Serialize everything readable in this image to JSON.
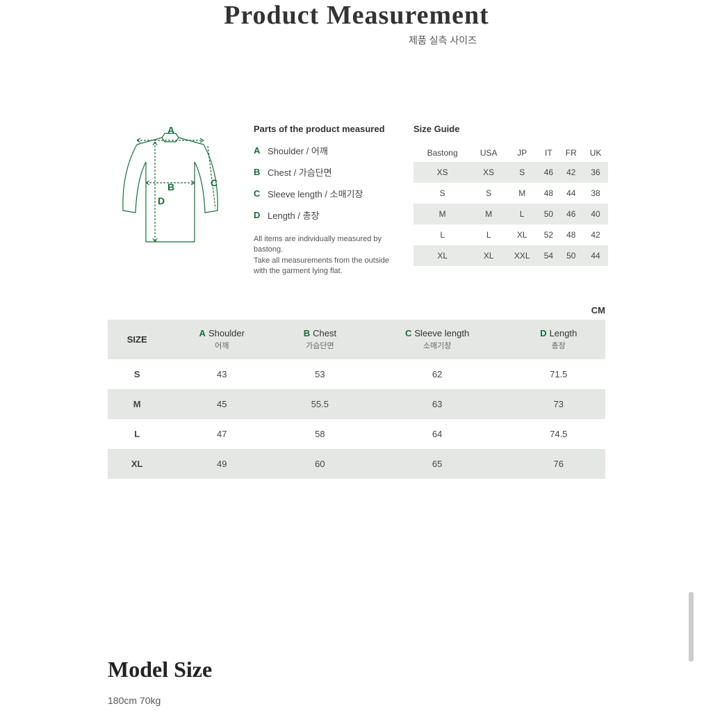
{
  "header": {
    "title": "Product Measurement",
    "subtitle": "제품 실측 사이즈"
  },
  "diagram": {
    "type": "garment-outline",
    "labels": {
      "A": "A",
      "B": "B",
      "C": "C",
      "D": "D"
    },
    "stroke_color": "#1a6b3a",
    "label_color": "#1a6b3a"
  },
  "parts": {
    "title": "Parts of the product measured",
    "items": [
      {
        "letter": "A",
        "label": "Shoulder / 어깨"
      },
      {
        "letter": "B",
        "label": "Chest / 가슴단면"
      },
      {
        "letter": "C",
        "label": "Sleeve length / 소매기장"
      },
      {
        "letter": "D",
        "label": "Length / 총장"
      }
    ],
    "note": "All items are individually measured by bastong.\nTake all measurements from the outside\nwith the garment lying flat."
  },
  "size_guide": {
    "title": "Size Guide",
    "columns": [
      "Bastong",
      "USA",
      "JP",
      "IT",
      "FR",
      "UK"
    ],
    "rows": [
      [
        "XS",
        "XS",
        "S",
        "46",
        "42",
        "36"
      ],
      [
        "S",
        "S",
        "M",
        "48",
        "44",
        "38"
      ],
      [
        "M",
        "M",
        "L",
        "50",
        "46",
        "40"
      ],
      [
        "L",
        "L",
        "XL",
        "52",
        "48",
        "42"
      ],
      [
        "XL",
        "XL",
        "XXL",
        "54",
        "50",
        "44"
      ]
    ],
    "even_row_bg": "#e8eae8"
  },
  "unit_label": "CM",
  "measurement_table": {
    "columns": [
      {
        "label": "SIZE",
        "letter": "",
        "sub": ""
      },
      {
        "label": "Shoulder",
        "letter": "A",
        "sub": "어깨"
      },
      {
        "label": "Chest",
        "letter": "B",
        "sub": "가슴단면"
      },
      {
        "label": "Sleeve length",
        "letter": "C",
        "sub": "소매기장"
      },
      {
        "label": "Length",
        "letter": "D",
        "sub": "총장"
      }
    ],
    "rows": [
      [
        "S",
        "43",
        "53",
        "62",
        "71.5"
      ],
      [
        "M",
        "45",
        "55.5",
        "63",
        "73"
      ],
      [
        "L",
        "47",
        "58",
        "64",
        "74.5"
      ],
      [
        "XL",
        "49",
        "60",
        "65",
        "76"
      ]
    ],
    "header_bg": "#e5e7e5",
    "even_row_bg": "#e5e7e5",
    "letter_color": "#1a6b3a"
  },
  "model": {
    "title": "Model Size",
    "value": "180cm 70kg"
  },
  "colors": {
    "accent": "#1a6b3a",
    "bg": "#ffffff",
    "text": "#333333",
    "muted": "#555555"
  }
}
